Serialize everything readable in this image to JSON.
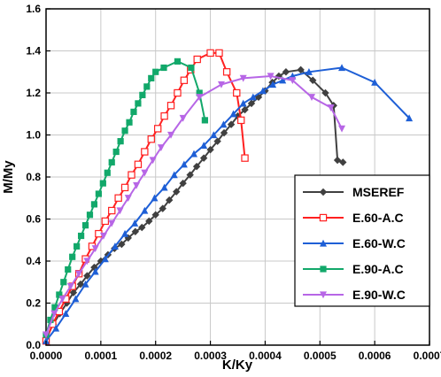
{
  "chart_data": {
    "type": "line",
    "xlabel": "K/Ky",
    "ylabel": "M/My",
    "xlim": [
      0,
      0.0007
    ],
    "ylim": [
      0,
      1.6
    ],
    "x_ticks": [
      "0.0000",
      "0.0001",
      "0.0002",
      "0.0003",
      "0.0004",
      "0.0005",
      "0.0006",
      "0.0007"
    ],
    "y_ticks": [
      "0.0",
      "0.2",
      "0.4",
      "0.6",
      "0.8",
      "1.0",
      "1.2",
      "1.4",
      "1.6"
    ],
    "grid": true,
    "legend_position": "bottom-right",
    "series": [
      {
        "name": "MSEREF",
        "color": "#404040",
        "marker": "diamond",
        "x": [
          0.0,
          1.3e-05,
          2.5e-05,
          3.8e-05,
          5e-05,
          6.3e-05,
          7.5e-05,
          8.8e-05,
          0.0001,
          0.000113,
          0.000125,
          0.000138,
          0.00015,
          0.000163,
          0.000175,
          0.000188,
          0.0002,
          0.000213,
          0.000225,
          0.000238,
          0.00025,
          0.000263,
          0.000275,
          0.000288,
          0.0003,
          0.000313,
          0.000325,
          0.000338,
          0.00035,
          0.000363,
          0.000375,
          0.000388,
          0.0004,
          0.000413,
          0.000425,
          0.000438,
          0.000465,
          0.000487,
          0.00051,
          0.000525,
          0.000532,
          0.000542
        ],
        "y": [
          0.03,
          0.1,
          0.15,
          0.2,
          0.25,
          0.29,
          0.33,
          0.37,
          0.4,
          0.43,
          0.46,
          0.48,
          0.51,
          0.54,
          0.56,
          0.59,
          0.62,
          0.65,
          0.69,
          0.73,
          0.77,
          0.81,
          0.85,
          0.89,
          0.93,
          0.97,
          1.01,
          1.05,
          1.09,
          1.12,
          1.15,
          1.18,
          1.21,
          1.25,
          1.28,
          1.3,
          1.31,
          1.26,
          1.2,
          1.14,
          0.88,
          0.87
        ]
      },
      {
        "name": "E.60-A.C",
        "color": "#ff2020",
        "marker": "open-square",
        "x": [
          0.0,
          1.2e-05,
          2.4e-05,
          3.6e-05,
          4.8e-05,
          6e-05,
          7.2e-05,
          8.4e-05,
          9.6e-05,
          0.000108,
          0.00012,
          0.000132,
          0.000144,
          0.000156,
          0.000168,
          0.00018,
          0.000192,
          0.000204,
          0.000216,
          0.000228,
          0.00024,
          0.000252,
          0.000264,
          0.000276,
          0.0003,
          0.000316,
          0.00033,
          0.000348,
          0.000356,
          0.000363
        ],
        "y": [
          0.02,
          0.1,
          0.16,
          0.22,
          0.28,
          0.34,
          0.41,
          0.47,
          0.53,
          0.59,
          0.64,
          0.7,
          0.75,
          0.81,
          0.86,
          0.92,
          0.98,
          1.03,
          1.09,
          1.14,
          1.2,
          1.26,
          1.31,
          1.36,
          1.39,
          1.39,
          1.3,
          1.2,
          1.07,
          0.89
        ]
      },
      {
        "name": "E.60-W.C",
        "color": "#1e5fd6",
        "marker": "triangle-up",
        "x": [
          0.0,
          1.8e-05,
          3.6e-05,
          5.4e-05,
          7.2e-05,
          9e-05,
          0.000108,
          0.000126,
          0.000144,
          0.000162,
          0.00018,
          0.000198,
          0.000216,
          0.000234,
          0.000252,
          0.00027,
          0.000288,
          0.000306,
          0.000324,
          0.000342,
          0.00036,
          0.000378,
          0.000396,
          0.000414,
          0.000432,
          0.00045,
          0.00048,
          0.00054,
          0.0006,
          0.000663
        ],
        "y": [
          0.02,
          0.08,
          0.15,
          0.22,
          0.29,
          0.35,
          0.41,
          0.47,
          0.53,
          0.58,
          0.64,
          0.7,
          0.75,
          0.81,
          0.86,
          0.91,
          0.95,
          1.0,
          1.05,
          1.1,
          1.15,
          1.18,
          1.21,
          1.24,
          1.26,
          1.28,
          1.3,
          1.32,
          1.25,
          1.08
        ]
      },
      {
        "name": "E.90-A.C",
        "color": "#12a86a",
        "marker": "square",
        "x": [
          0.0,
          8e-06,
          1.6e-05,
          2.4e-05,
          3.2e-05,
          4e-05,
          4.8e-05,
          5.6e-05,
          6.4e-05,
          7.2e-05,
          8e-05,
          8.8e-05,
          9.6e-05,
          0.000104,
          0.000112,
          0.00012,
          0.000128,
          0.000136,
          0.000144,
          0.000152,
          0.00016,
          0.000168,
          0.000176,
          0.000184,
          0.000192,
          0.0002,
          0.000215,
          0.00024,
          0.000265,
          0.00028,
          0.00029
        ],
        "y": [
          0.05,
          0.12,
          0.18,
          0.24,
          0.3,
          0.36,
          0.42,
          0.47,
          0.52,
          0.57,
          0.62,
          0.67,
          0.72,
          0.77,
          0.82,
          0.87,
          0.92,
          0.97,
          1.02,
          1.06,
          1.11,
          1.15,
          1.19,
          1.23,
          1.27,
          1.3,
          1.32,
          1.35,
          1.32,
          1.2,
          1.07
        ]
      },
      {
        "name": "E.90-W.C",
        "color": "#b766e6",
        "marker": "triangle-down",
        "x": [
          0.0,
          1.5e-05,
          3e-05,
          4.5e-05,
          6e-05,
          7.5e-05,
          9e-05,
          0.000105,
          0.00012,
          0.000135,
          0.00015,
          0.000165,
          0.00018,
          0.000195,
          0.00021,
          0.000228,
          0.00025,
          0.00028,
          0.00032,
          0.00036,
          0.00041,
          0.00045,
          0.000485,
          0.00052,
          0.00054
        ],
        "y": [
          0.05,
          0.15,
          0.22,
          0.28,
          0.34,
          0.4,
          0.46,
          0.52,
          0.58,
          0.64,
          0.7,
          0.76,
          0.82,
          0.88,
          0.94,
          1.0,
          1.08,
          1.18,
          1.24,
          1.27,
          1.28,
          1.26,
          1.18,
          1.13,
          1.03
        ]
      }
    ]
  }
}
